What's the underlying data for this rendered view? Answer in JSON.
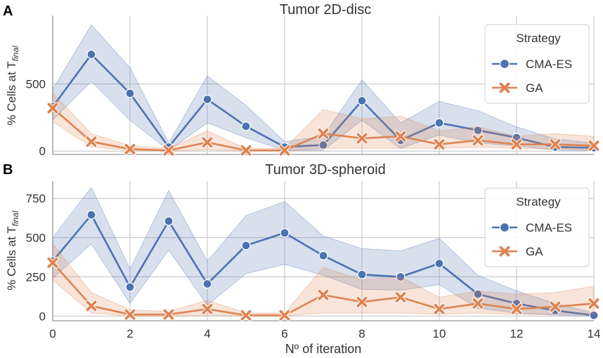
{
  "colors": {
    "cma": "#4c72b0",
    "ga": "#dd8452",
    "grid": "#cccccc",
    "axis": "#999999",
    "text": "#333333"
  },
  "chart_data": [
    {
      "type": "line",
      "panel_label": "A",
      "title": "Tumor 2D-disc",
      "ylabel_main": "% Cells at T",
      "ylabel_sub": "final",
      "xlabel": "",
      "xlim": [
        0,
        14
      ],
      "ylim": [
        -25,
        1010
      ],
      "grid": true,
      "yticks": [
        0,
        500
      ],
      "ytick_labels": [
        "0",
        "500"
      ],
      "xticks": [
        0,
        2,
        4,
        6,
        8,
        10,
        12,
        14
      ],
      "legend": {
        "title": "Strategy",
        "position": "top-right",
        "entries": [
          "CMA-ES",
          "GA"
        ]
      },
      "x": [
        0,
        1,
        2,
        3,
        4,
        5,
        6,
        7,
        8,
        9,
        10,
        11,
        12,
        13,
        14
      ],
      "series": [
        {
          "name": "CMA-ES",
          "color_key": "cma",
          "marker": "circle",
          "values": [
            330,
            720,
            430,
            30,
            385,
            185,
            30,
            45,
            375,
            80,
            210,
            155,
            100,
            30,
            25
          ],
          "ci_low": [
            230,
            520,
            230,
            5,
            210,
            100,
            5,
            5,
            230,
            20,
            120,
            60,
            40,
            5,
            5
          ],
          "ci_high": [
            460,
            940,
            620,
            60,
            560,
            340,
            70,
            110,
            530,
            210,
            370,
            300,
            180,
            90,
            60
          ]
        },
        {
          "name": "GA",
          "color_key": "ga",
          "marker": "x",
          "values": [
            320,
            70,
            15,
            5,
            65,
            5,
            5,
            130,
            95,
            110,
            50,
            80,
            50,
            50,
            40
          ],
          "ci_low": [
            220,
            30,
            5,
            0,
            10,
            0,
            0,
            20,
            20,
            20,
            20,
            30,
            20,
            15,
            10
          ],
          "ci_high": [
            430,
            130,
            40,
            20,
            150,
            20,
            20,
            310,
            240,
            260,
            150,
            180,
            110,
            130,
            110
          ]
        }
      ]
    },
    {
      "type": "line",
      "panel_label": "B",
      "title": "Tumor 3D-spheroid",
      "ylabel_main": "% Cells at T",
      "ylabel_sub": "final",
      "xlabel": "Nº of iteration",
      "xlim": [
        0,
        14
      ],
      "ylim": [
        -30,
        860
      ],
      "grid": true,
      "yticks": [
        0,
        250,
        500,
        750
      ],
      "ytick_labels": [
        "0",
        "250",
        "500",
        "750"
      ],
      "xticks": [
        0,
        2,
        4,
        6,
        8,
        10,
        12,
        14
      ],
      "xtick_labels": [
        "0",
        "2",
        "4",
        "6",
        "8",
        "10",
        "12",
        "14"
      ],
      "legend": {
        "title": "Strategy",
        "position": "top-right",
        "entries": [
          "CMA-ES",
          "GA"
        ]
      },
      "x": [
        0,
        1,
        2,
        3,
        4,
        5,
        6,
        7,
        8,
        9,
        10,
        11,
        12,
        13,
        14
      ],
      "series": [
        {
          "name": "CMA-ES",
          "color_key": "cma",
          "marker": "circle",
          "values": [
            350,
            645,
            185,
            605,
            205,
            450,
            530,
            385,
            265,
            250,
            335,
            140,
            80,
            35,
            5
          ],
          "ci_low": [
            240,
            460,
            80,
            420,
            70,
            270,
            330,
            260,
            170,
            165,
            200,
            50,
            20,
            5,
            0
          ],
          "ci_high": [
            500,
            820,
            300,
            800,
            350,
            640,
            730,
            510,
            430,
            415,
            495,
            260,
            160,
            80,
            20
          ]
        },
        {
          "name": "GA",
          "color_key": "ga",
          "marker": "x",
          "values": [
            340,
            65,
            10,
            10,
            45,
            5,
            5,
            135,
            90,
            120,
            45,
            80,
            45,
            60,
            80
          ],
          "ci_low": [
            230,
            20,
            0,
            0,
            5,
            0,
            0,
            20,
            20,
            20,
            10,
            20,
            10,
            10,
            10
          ],
          "ci_high": [
            460,
            150,
            40,
            30,
            100,
            20,
            20,
            310,
            230,
            250,
            120,
            160,
            140,
            150,
            190
          ]
        }
      ]
    }
  ]
}
